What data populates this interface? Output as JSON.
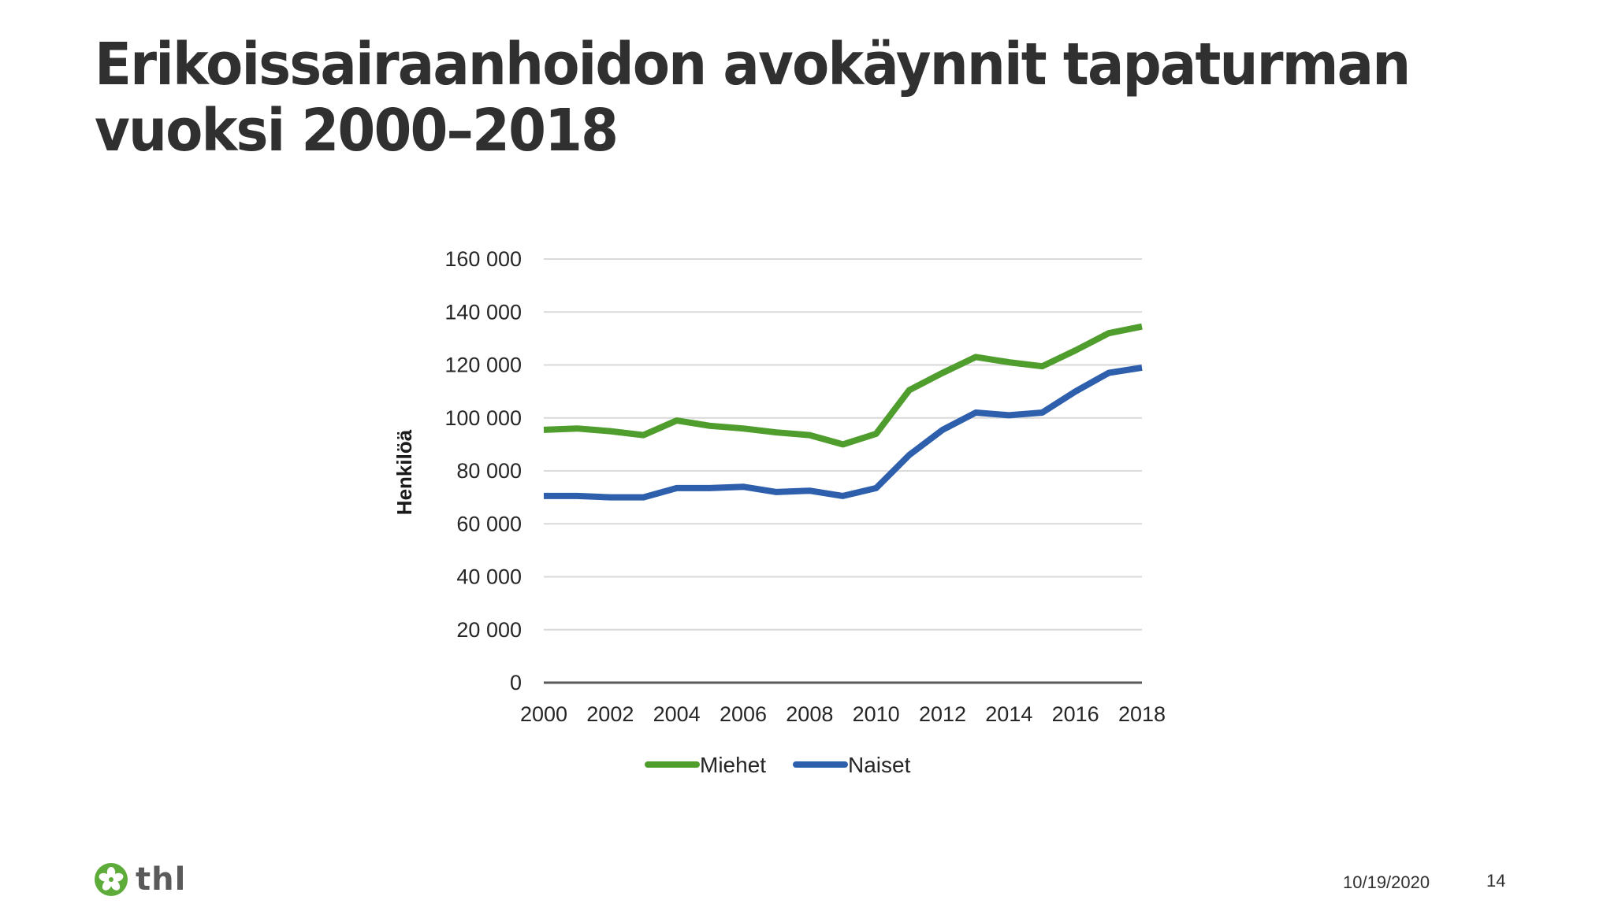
{
  "slide": {
    "title_line1": "Erikoissairaanhoidon avokäynnit tapaturman",
    "title_line2": "vuoksi 2000–2018"
  },
  "footer": {
    "logo_text": "thl",
    "logo_icon": "flower-icon",
    "logo_color": "#5dac3a",
    "date": "10/19/2020",
    "page_number": "14"
  },
  "chart_data": {
    "type": "line",
    "title": "",
    "xlabel": "",
    "ylabel": "Henkilöä",
    "ylim": [
      0,
      160000
    ],
    "yticks": [
      0,
      20000,
      40000,
      60000,
      80000,
      100000,
      120000,
      140000,
      160000
    ],
    "ytick_labels": [
      "0",
      "20 000",
      "40 000",
      "60 000",
      "80 000",
      "100 000",
      "120 000",
      "140 000",
      "160 000"
    ],
    "x": [
      2000,
      2001,
      2002,
      2003,
      2004,
      2005,
      2006,
      2007,
      2008,
      2009,
      2010,
      2011,
      2012,
      2013,
      2014,
      2015,
      2016,
      2017,
      2018
    ],
    "xtick_labels": [
      "2000",
      "2002",
      "2004",
      "2006",
      "2008",
      "2010",
      "2012",
      "2014",
      "2016",
      "2018"
    ],
    "grid": true,
    "legend_position": "bottom",
    "series": [
      {
        "name": "Miehet",
        "color": "#4f9d2d",
        "values": [
          95500,
          96000,
          95000,
          93500,
          99000,
          97000,
          96000,
          94500,
          93500,
          90000,
          94000,
          110500,
          117000,
          123000,
          121000,
          119500,
          125500,
          132000,
          134500
        ]
      },
      {
        "name": "Naiset",
        "color": "#2e5fad",
        "values": [
          70500,
          70500,
          70000,
          70000,
          73500,
          73500,
          74000,
          72000,
          72500,
          70500,
          73500,
          86000,
          95500,
          102000,
          101000,
          102000,
          110000,
          117000,
          119000
        ]
      }
    ]
  }
}
